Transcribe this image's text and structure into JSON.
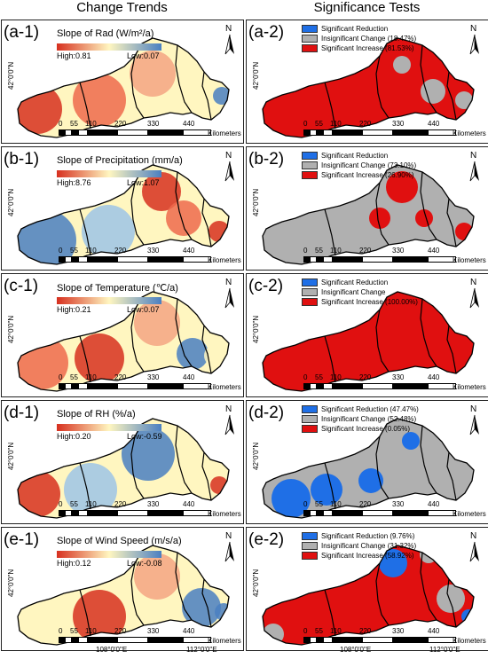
{
  "headers": {
    "left": "Change Trends",
    "right": "Significance Tests"
  },
  "north_label": "N",
  "latitude_label": "42°0'0\"N",
  "longitude_labels": [
    "108°0'0\"E",
    "112°0'0\"E"
  ],
  "scale": {
    "ticks": [
      "0",
      "55",
      "110",
      "220",
      "330",
      "440"
    ],
    "unit": "Kilometers"
  },
  "colors": {
    "reduction": "#1f6fe6",
    "insignificant": "#b0b0b0",
    "increase": "#e01010",
    "grad_high": "#d7301f",
    "grad_mid": "#fff6c0",
    "grad_low": "#4a7fc1"
  },
  "rows": [
    {
      "trend": {
        "label": "(a-1)",
        "title": "Slope of Rad (W/m²/a)",
        "high": "High:0.81",
        "low": "Low:0.07"
      },
      "sig": {
        "label": "(a-2)",
        "items": [
          "Significant Reduction",
          "Insignificant Change (18.47%)",
          "Significant Increase (81.53%)"
        ]
      }
    },
    {
      "trend": {
        "label": "(b-1)",
        "title": "Slope of Precipitation (mm/a)",
        "high": "High:8.76",
        "low": "Low:1.07"
      },
      "sig": {
        "label": "(b-2)",
        "items": [
          "Significant Reduction",
          "Insignificant Change (73.10%)",
          "Significant Increase (26.90%)"
        ]
      }
    },
    {
      "trend": {
        "label": "(c-1)",
        "title": "Slope of Temperature (℃/a)",
        "high": "High:0.21",
        "low": "Low:0.07"
      },
      "sig": {
        "label": "(c-2)",
        "items": [
          "Significant Reduction",
          "Insignificant Change",
          "Significant Increase (100.00%)"
        ]
      }
    },
    {
      "trend": {
        "label": "(d-1)",
        "title": "Slope of RH (%/a)",
        "high": "High:0.20",
        "low": "Low:-0.59"
      },
      "sig": {
        "label": "(d-2)",
        "items": [
          "Significant Reduction (47.47%)",
          "Insignificant Change (52.48%)",
          "Significant Increase (0.05%)"
        ]
      }
    },
    {
      "trend": {
        "label": "(e-1)",
        "title": "Slope of Wind Speed (m/s/a)",
        "high": "High:0.12",
        "low": "Low:-0.08"
      },
      "sig": {
        "label": "(e-2)",
        "items": [
          "Significant Reduction (9.76%)",
          "Insignificant Change (31.32%)",
          "Significant Increase (58.92%)"
        ]
      }
    }
  ]
}
